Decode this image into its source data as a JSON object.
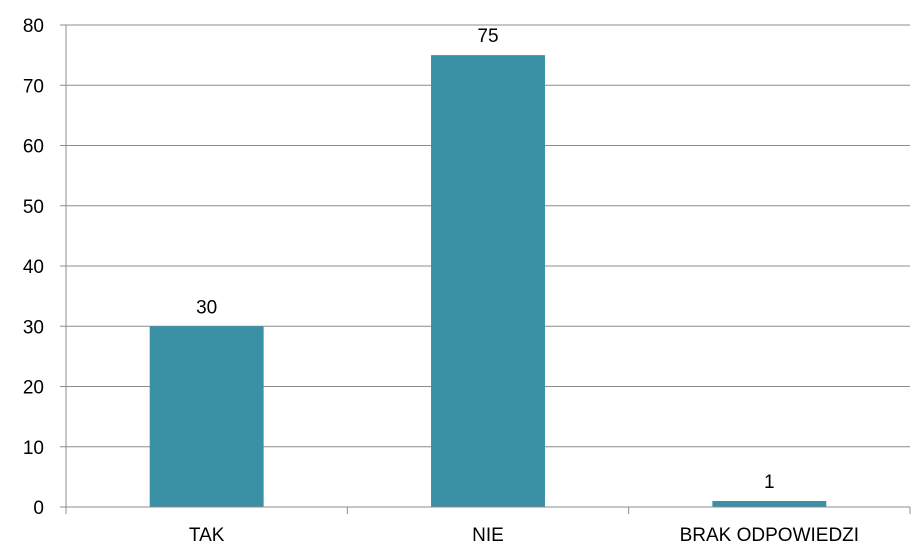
{
  "chart_data": {
    "type": "bar",
    "title": "",
    "xlabel": "",
    "ylabel": "",
    "categories": [
      "TAK",
      "NIE",
      "BRAK ODPOWIEDZI"
    ],
    "values": [
      30,
      75,
      1
    ],
    "data_labels": [
      "30",
      "75",
      "1"
    ],
    "ylim": [
      0,
      80
    ],
    "yticks": [
      0,
      10,
      20,
      30,
      40,
      50,
      60,
      70,
      80
    ],
    "ytick_labels": [
      "0",
      "10",
      "20",
      "30",
      "40",
      "50",
      "60",
      "70",
      "80"
    ],
    "grid": true,
    "legend": "none",
    "bar_color": "#3A91A6",
    "grid_color": "#8C8C8C"
  }
}
